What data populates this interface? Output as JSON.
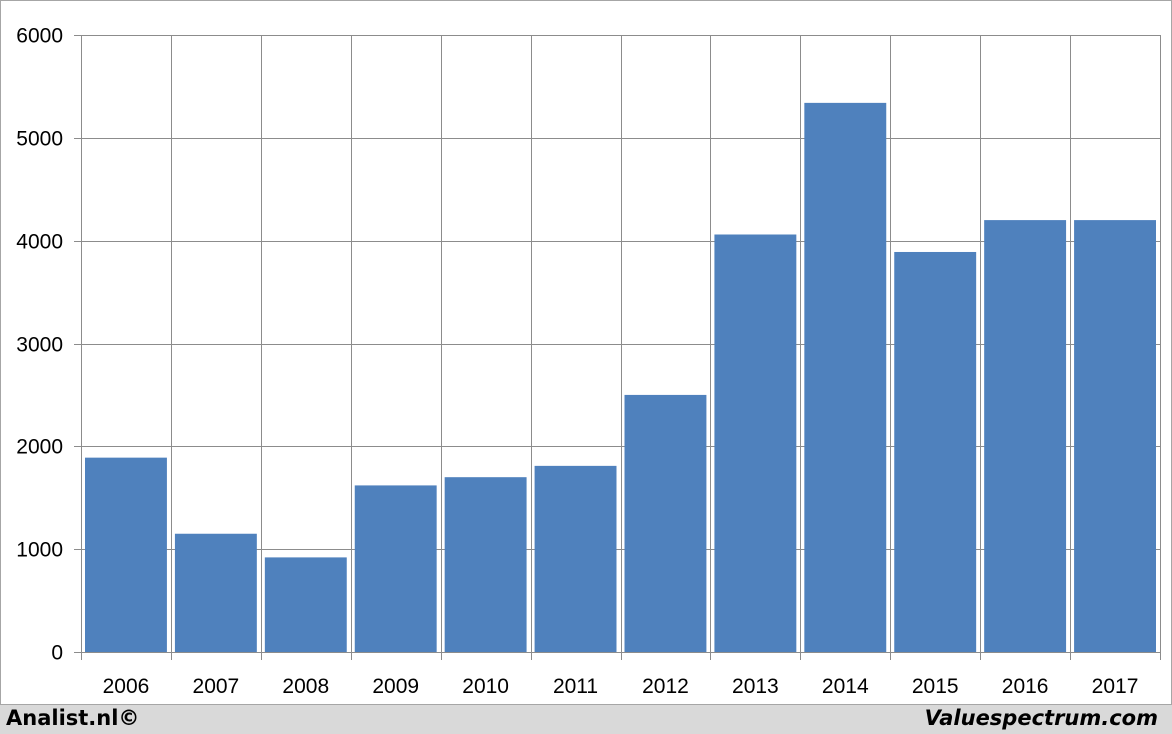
{
  "footer": {
    "left_text": "Analist.nl©",
    "right_text": "Valuespectrum.com"
  },
  "colors": {
    "bar": "#4f81bd",
    "grid": "#8c8c8c",
    "background": "#ffffff",
    "outer_background": "#d9d9d9"
  },
  "chart_data": {
    "type": "bar",
    "categories": [
      "2006",
      "2007",
      "2008",
      "2009",
      "2010",
      "2011",
      "2012",
      "2013",
      "2014",
      "2015",
      "2016",
      "2017"
    ],
    "values": [
      1890,
      1150,
      920,
      1620,
      1700,
      1810,
      2500,
      4060,
      5340,
      3890,
      4200,
      4200
    ],
    "ylim": [
      0,
      6000
    ],
    "yticks": [
      "0",
      "1000",
      "2000",
      "3000",
      "4000",
      "5000",
      "6000"
    ],
    "title": "",
    "xlabel": "",
    "ylabel": "",
    "grid": true,
    "legend": "none"
  }
}
